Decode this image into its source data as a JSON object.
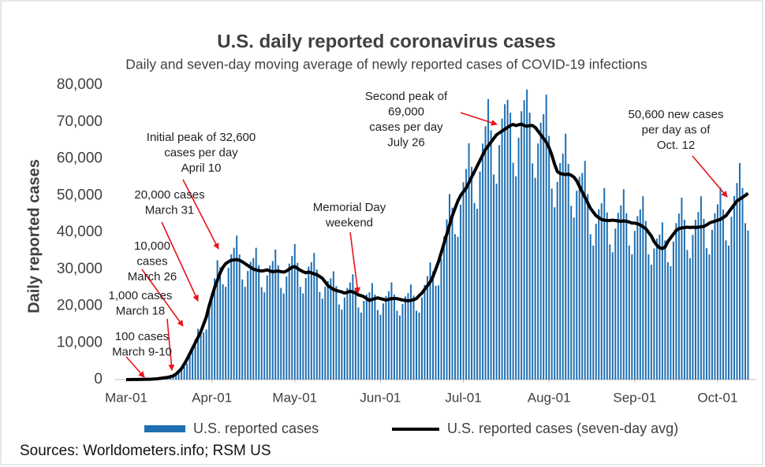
{
  "chart_data": {
    "type": "bar",
    "title": "U.S. daily reported coronavirus cases",
    "subtitle": "Daily and seven-day moving average of newly reported cases of COVID-19 infections",
    "y_label": "Daily reported cases",
    "source": "Sources: Worldometers.info; RSM US",
    "xlim": [
      -4,
      228
    ],
    "xticks": [
      {
        "value": 0,
        "label": "Mar-01"
      },
      {
        "value": 31,
        "label": "Apr-01"
      },
      {
        "value": 61,
        "label": "May-01"
      },
      {
        "value": 92,
        "label": "Jun-01"
      },
      {
        "value": 122,
        "label": "Jul-01"
      },
      {
        "value": 153,
        "label": "Aug-01"
      },
      {
        "value": 184,
        "label": "Sep-01"
      },
      {
        "value": 214,
        "label": "Oct-01"
      }
    ],
    "ylim": [
      0,
      80000
    ],
    "yticks": [
      0,
      {
        "value": 10000,
        "label": "10,000"
      },
      {
        "value": 20000,
        "label": "20,000"
      },
      {
        "value": 30000,
        "label": "30,000"
      },
      {
        "value": 40000,
        "label": "40,000"
      },
      {
        "value": 50000,
        "label": "50,000"
      },
      {
        "value": 60000,
        "label": "60,000"
      },
      {
        "value": 70000,
        "label": "70,000"
      },
      {
        "value": 80000,
        "label": "80,000"
      }
    ],
    "grid": false,
    "legend": "bottom",
    "x": [
      0,
      1,
      2,
      3,
      4,
      5,
      6,
      7,
      8,
      9,
      10,
      11,
      12,
      13,
      14,
      15,
      16,
      17,
      18,
      19,
      20,
      21,
      22,
      23,
      24,
      25,
      26,
      27,
      28,
      29,
      30,
      31,
      32,
      33,
      34,
      35,
      36,
      37,
      38,
      39,
      40,
      41,
      42,
      43,
      44,
      45,
      46,
      47,
      48,
      49,
      50,
      51,
      52,
      53,
      54,
      55,
      56,
      57,
      58,
      59,
      60,
      61,
      62,
      63,
      64,
      65,
      66,
      67,
      68,
      69,
      70,
      71,
      72,
      73,
      74,
      75,
      76,
      77,
      78,
      79,
      80,
      81,
      82,
      83,
      84,
      85,
      86,
      87,
      88,
      89,
      90,
      91,
      92,
      93,
      94,
      95,
      96,
      97,
      98,
      99,
      100,
      101,
      102,
      103,
      104,
      105,
      106,
      107,
      108,
      109,
      110,
      111,
      112,
      113,
      114,
      115,
      116,
      117,
      118,
      119,
      120,
      121,
      122,
      123,
      124,
      125,
      126,
      127,
      128,
      129,
      130,
      131,
      132,
      133,
      134,
      135,
      136,
      137,
      138,
      139,
      140,
      141,
      142,
      143,
      144,
      145,
      146,
      147,
      148,
      149,
      150,
      151,
      152,
      153,
      154,
      155,
      156,
      157,
      158,
      159,
      160,
      161,
      162,
      163,
      164,
      165,
      166,
      167,
      168,
      169,
      170,
      171,
      172,
      173,
      174,
      175,
      176,
      177,
      178,
      179,
      180,
      181,
      182,
      183,
      184,
      185,
      186,
      187,
      188,
      189,
      190,
      191,
      192,
      193,
      194,
      195,
      196,
      197,
      198,
      199,
      200,
      201,
      202,
      203,
      204,
      205,
      206,
      207,
      208,
      209,
      210,
      211,
      212,
      213,
      214,
      215,
      216,
      217,
      218,
      219,
      220,
      221,
      222,
      223,
      224,
      225
    ],
    "series": [
      {
        "name": "U.S. reported cases",
        "type": "bar",
        "color": "#1f6fb2",
        "values": [
          10,
          10,
          20,
          30,
          30,
          50,
          60,
          60,
          70,
          100,
          160,
          220,
          360,
          420,
          430,
          480,
          760,
          1050,
          1650,
          2600,
          3200,
          3600,
          4400,
          6700,
          8900,
          11000,
          13800,
          13700,
          12800,
          13600,
          19000,
          23600,
          27500,
          32400,
          30500,
          25900,
          25200,
          30400,
          34000,
          35800,
          39100,
          34000,
          27200,
          25200,
          29500,
          32000,
          33000,
          35800,
          31100,
          25100,
          23700,
          28300,
          31000,
          32200,
          35300,
          31000,
          24900,
          23400,
          28000,
          31500,
          33600,
          36800,
          31700,
          25200,
          23400,
          27600,
          30700,
          31900,
          34400,
          29900,
          23800,
          22000,
          25200,
          26800,
          27500,
          29400,
          25400,
          20400,
          19000,
          22300,
          24900,
          26400,
          28600,
          24700,
          19600,
          18200,
          21400,
          23100,
          23700,
          26200,
          23100,
          18900,
          17600,
          20700,
          22700,
          24000,
          26400,
          23100,
          18700,
          17400,
          20500,
          22600,
          23500,
          25800,
          22800,
          18700,
          18200,
          22300,
          25700,
          28100,
          31800,
          29400,
          25500,
          25600,
          32800,
          38900,
          43500,
          50400,
          46700,
          39500,
          38800,
          47500,
          53600,
          57200,
          64200,
          57800,
          48000,
          46400,
          56500,
          64100,
          68800,
          76200,
          67700,
          55700,
          53200,
          63700,
          70900,
          74800,
          76000,
          72500,
          58900,
          55200,
          65700,
          72900,
          75900,
          78800,
          72500,
          58700,
          54800,
          64100,
          69800,
          72100,
          77400,
          66200,
          51900,
          46800,
          53700,
          58800,
          61400,
          66800,
          58600,
          47200,
          44000,
          51300,
          55100,
          56100,
          59400,
          50400,
          39500,
          36400,
          42300,
          46200,
          47900,
          52000,
          45400,
          36700,
          34600,
          41000,
          45300,
          47300,
          51700,
          45200,
          36400,
          34000,
          40400,
          44400,
          46200,
          49800,
          43100,
          34000,
          31200,
          35600,
          38300,
          39400,
          42700,
          37800,
          31900,
          30800,
          37500,
          42500,
          45100,
          49400,
          43400,
          35200,
          33000,
          39300,
          43400,
          45500,
          49800,
          43700,
          35700,
          34000,
          40700,
          45200,
          47600,
          52200,
          46200,
          37800,
          36400,
          44200,
          49900,
          53400,
          58800,
          52000,
          42500,
          40500
        ]
      },
      {
        "name": "U.S. reported cases (seven-day avg)",
        "type": "line",
        "color": "#000000",
        "values": [
          10,
          10,
          20,
          20,
          30,
          40,
          60,
          70,
          90,
          100,
          150,
          200,
          300,
          400,
          500,
          600,
          800,
          1000,
          1500,
          2200,
          3000,
          4200,
          5500,
          7000,
          8500,
          10000,
          11500,
          13000,
          15000,
          17000,
          20000,
          22500,
          25000,
          27000,
          29000,
          30500,
          31500,
          32000,
          32400,
          32500,
          32600,
          32400,
          32000,
          31500,
          31000,
          30500,
          30000,
          29800,
          29600,
          29500,
          29600,
          29800,
          29500,
          29300,
          29400,
          29500,
          29300,
          29200,
          29500,
          30000,
          30500,
          30700,
          30200,
          29700,
          29300,
          29000,
          29200,
          29000,
          28700,
          28500,
          28000,
          27500,
          26500,
          25500,
          25000,
          24500,
          24200,
          24000,
          23800,
          23500,
          23700,
          24000,
          23800,
          23500,
          23000,
          22800,
          22500,
          22000,
          21500,
          21800,
          22000,
          22200,
          22000,
          21800,
          21600,
          21800,
          22000,
          22000,
          22000,
          21800,
          21600,
          21500,
          21400,
          21500,
          21700,
          22000,
          22800,
          23500,
          24500,
          25500,
          26500,
          28000,
          30000,
          32000,
          34500,
          37000,
          39500,
          42000,
          44500,
          46500,
          48500,
          50000,
          51000,
          52000,
          53500,
          55000,
          56500,
          58000,
          59500,
          61000,
          62500,
          63500,
          64500,
          65500,
          66500,
          67000,
          67500,
          68000,
          68500,
          69000,
          69300,
          69000,
          69200,
          69400,
          69000,
          68800,
          69000,
          69000,
          68500,
          67500,
          66500,
          65500,
          64500,
          63000,
          61000,
          58500,
          56500,
          56000,
          55800,
          55700,
          55800,
          55500,
          55000,
          54000,
          52500,
          51000,
          49500,
          48000,
          46500,
          45500,
          44500,
          44000,
          43500,
          43300,
          43200,
          43200,
          43300,
          43200,
          43100,
          43000,
          43100,
          43000,
          42800,
          42500,
          42500,
          42300,
          42000,
          41500,
          41000,
          40000,
          39000,
          37500,
          36500,
          35800,
          35600,
          36000,
          37500,
          38500,
          39500,
          40500,
          41000,
          41200,
          41300,
          41400,
          41300,
          41400,
          41300,
          41400,
          41500,
          41600,
          42000,
          42500,
          42800,
          43000,
          43300,
          43500,
          44000,
          44500,
          45500,
          46500,
          47500,
          48500,
          49000,
          49500,
          50000,
          50600
        ]
      }
    ],
    "annotations": [
      [
        "Initial peak of 32,600",
        "cases per day",
        "April 10"
      ],
      [
        "20,000 cases",
        "March 31"
      ],
      [
        "10,000",
        "cases",
        "March 26"
      ],
      [
        "1,000 cases",
        "March 18"
      ],
      [
        "100 cases",
        "March 9-10"
      ],
      [
        "Memorial Day",
        "weekend"
      ],
      [
        "Second peak of",
        "69,000",
        "cases per day",
        "July 26"
      ],
      [
        "50,600 new cases",
        "per day as of",
        "Oct. 12"
      ]
    ]
  }
}
